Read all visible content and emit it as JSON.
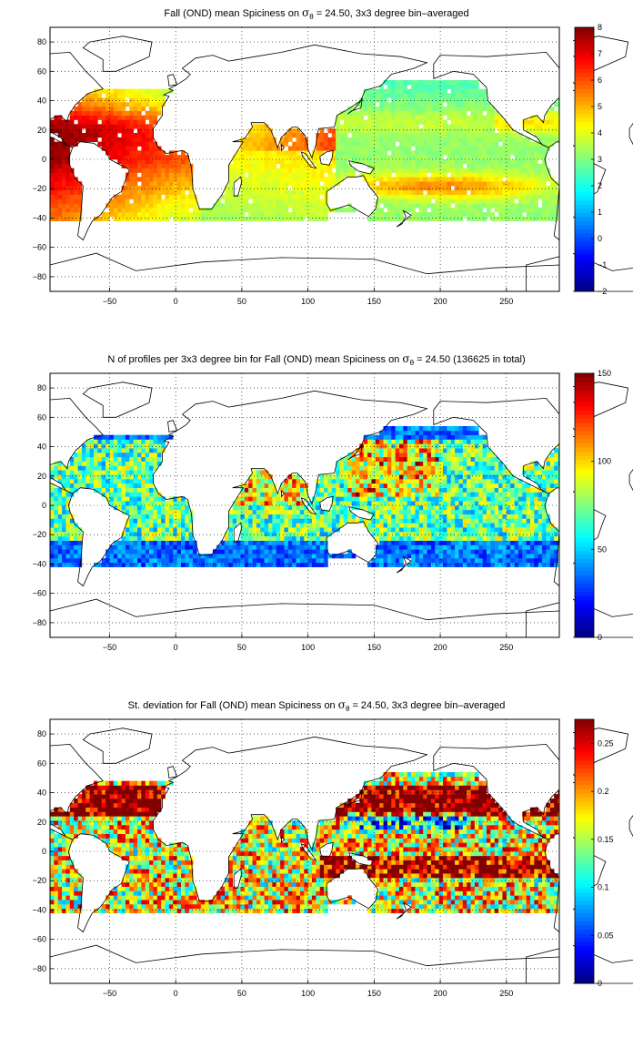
{
  "panels": [
    {
      "title_pre": "Fall (OND) mean Spiciness on ",
      "title_sym": "σ",
      "title_sub": "θ",
      "title_post": " = 24.50, 3x3 degree bin–averaged",
      "variable": "spiciness_mean",
      "colorbar": {
        "min": -2,
        "max": 8,
        "ticks": [
          "8",
          "7",
          "6",
          "5",
          "4",
          "3",
          "2",
          "1",
          "0",
          "−1",
          "−2"
        ]
      }
    },
    {
      "title_pre": "N of profiles per 3x3 degree bin for Fall (OND) mean Spiciness on ",
      "title_sym": "σ",
      "title_sub": "θ",
      "title_post": " = 24.50 (136625 in total)",
      "variable": "profile_count",
      "colorbar": {
        "min": 0,
        "max": 150,
        "ticks": [
          "150",
          "100",
          "50",
          "0"
        ]
      }
    },
    {
      "title_pre": "St. deviation for Fall (OND) mean Spiciness on ",
      "title_sym": "σ",
      "title_sub": "θ",
      "title_post": " = 24.50, 3x3 degree bin–averaged",
      "variable": "spiciness_std",
      "colorbar": {
        "min": 0,
        "max": 0.275,
        "ticks": [
          "0.25",
          "0.2",
          "0.15",
          "0.1",
          "0.05",
          "0"
        ]
      }
    }
  ],
  "axes": {
    "x_ticks": [
      "−50",
      "0",
      "50",
      "100",
      "150",
      "200",
      "250"
    ],
    "y_ticks": [
      "80",
      "60",
      "40",
      "20",
      "0",
      "−20",
      "−40",
      "−60",
      "−80"
    ],
    "x_range": [
      -95,
      290
    ],
    "y_range": [
      -90,
      90
    ],
    "grid": true,
    "colormap": "jet"
  }
}
